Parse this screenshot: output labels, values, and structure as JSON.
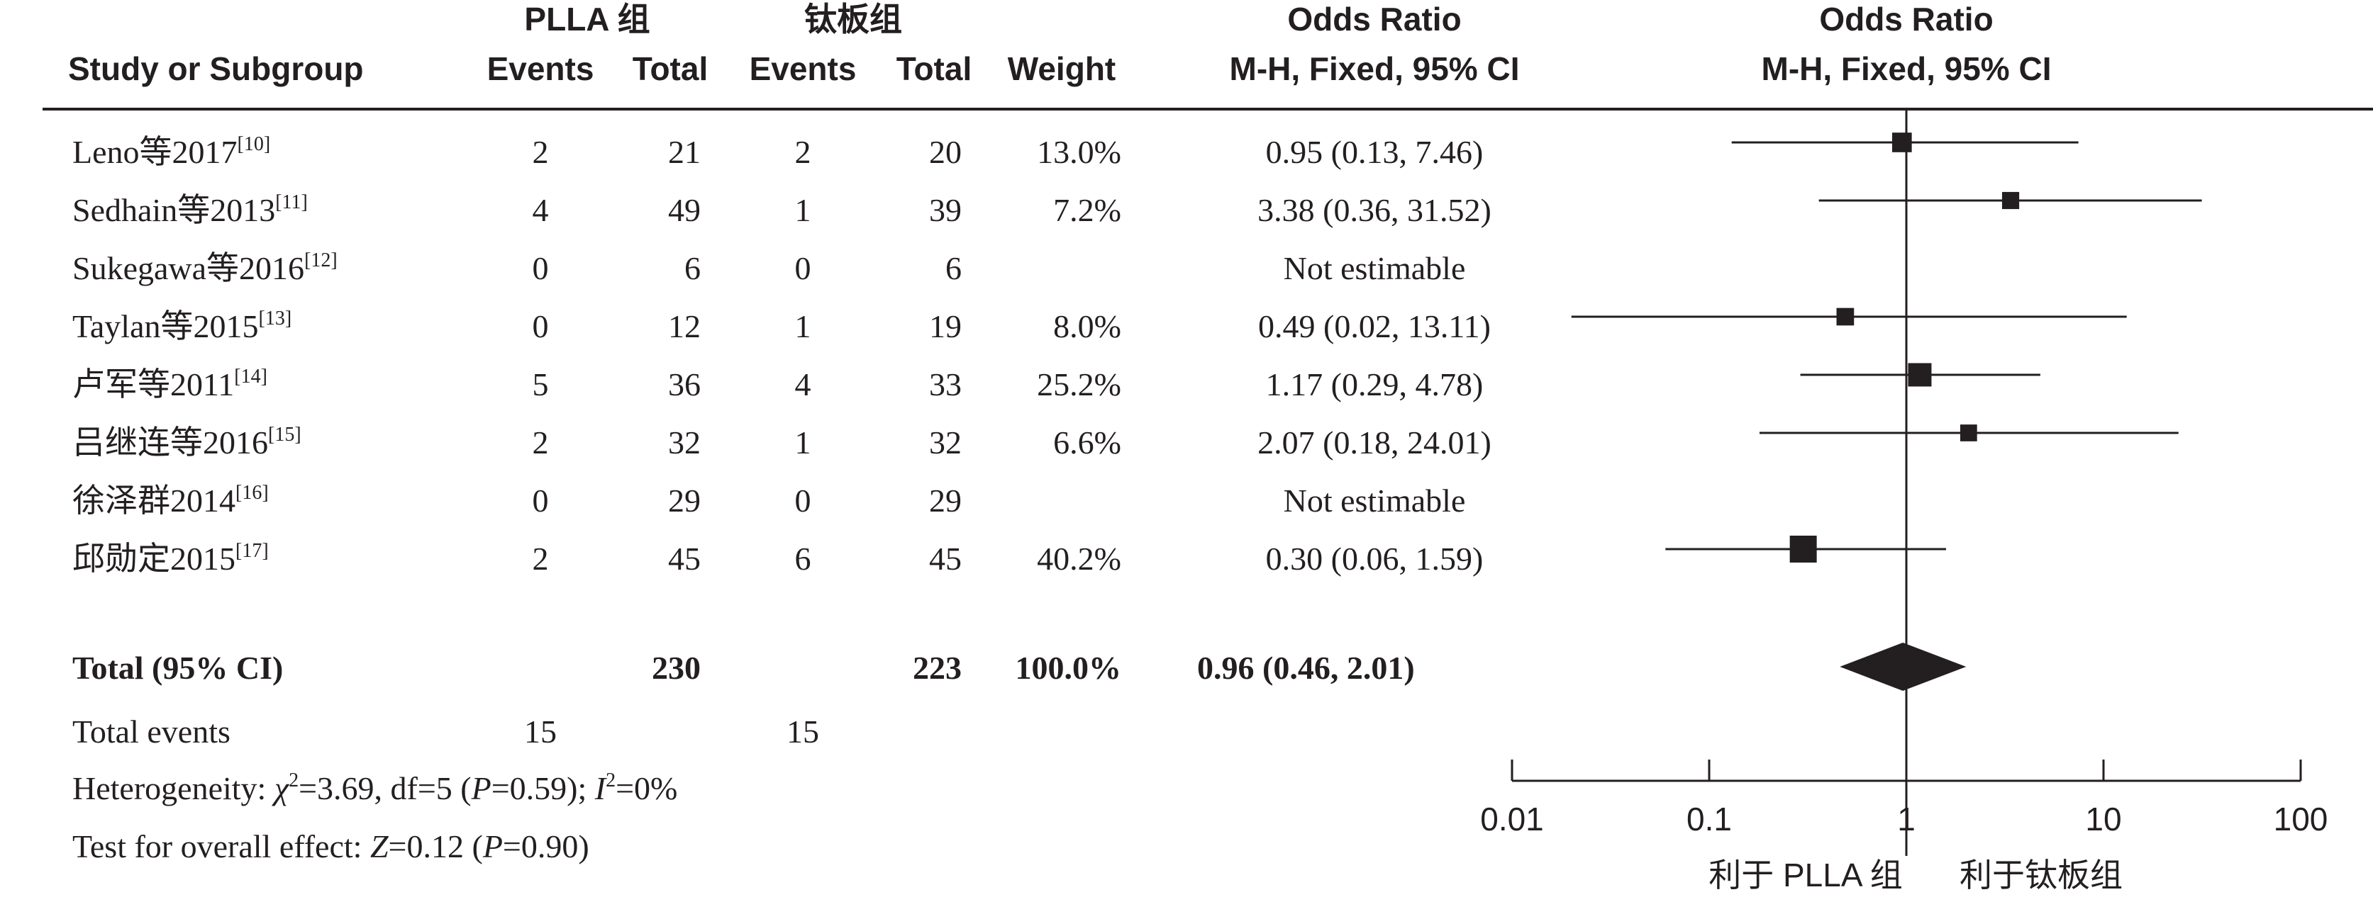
{
  "headers": {
    "group1": "PLLA 组",
    "group2": "钛板组",
    "study": "Study or Subgroup",
    "events1": "Events",
    "total1": "Total",
    "events2": "Events",
    "total2": "Total",
    "weight": "Weight",
    "or_title": "Odds Ratio",
    "or_method": "M-H, Fixed, 95% CI",
    "plot_title": "Odds Ratio",
    "plot_method": "M-H, Fixed, 95% CI"
  },
  "studies": [
    {
      "name": "Leno等2017",
      "ref": "[10]",
      "events1": "2",
      "total1": "21",
      "events2": "2",
      "total2": "20",
      "weight": "13.0%",
      "ci_text": "0.95 (0.13, 7.46)"
    },
    {
      "name": "Sedhain等2013",
      "ref": "[11]",
      "events1": "4",
      "total1": "49",
      "events2": "1",
      "total2": "39",
      "weight": "7.2%",
      "ci_text": "3.38 (0.36, 31.52)"
    },
    {
      "name": "Sukegawa等2016",
      "ref": "[12]",
      "events1": "0",
      "total1": "6",
      "events2": "0",
      "total2": "6",
      "weight": "",
      "ci_text": "Not estimable"
    },
    {
      "name": "Taylan等2015",
      "ref": "[13]",
      "events1": "0",
      "total1": "12",
      "events2": "1",
      "total2": "19",
      "weight": "8.0%",
      "ci_text": "0.49 (0.02, 13.11)"
    },
    {
      "name": "卢军等2011",
      "ref": "[14]",
      "events1": "5",
      "total1": "36",
      "events2": "4",
      "total2": "33",
      "weight": "25.2%",
      "ci_text": "1.17 (0.29, 4.78)"
    },
    {
      "name": "吕继连等2016",
      "ref": "[15]",
      "events1": "2",
      "total1": "32",
      "events2": "1",
      "total2": "32",
      "weight": "6.6%",
      "ci_text": "2.07 (0.18, 24.01)"
    },
    {
      "name": "徐泽群2014",
      "ref": "[16]",
      "events1": "0",
      "total1": "29",
      "events2": "0",
      "total2": "29",
      "weight": "",
      "ci_text": "Not estimable"
    },
    {
      "name": "邱勋定2015",
      "ref": "[17]",
      "events1": "2",
      "total1": "45",
      "events2": "6",
      "total2": "45",
      "weight": "40.2%",
      "ci_text": "0.30 (0.06, 1.59)"
    }
  ],
  "total": {
    "label": "Total (95% CI)",
    "total1": "230",
    "total2": "223",
    "weight": "100.0%",
    "ci_text": "0.96 (0.46, 2.01)"
  },
  "total_events": {
    "label": "Total events",
    "events1": "15",
    "events2": "15"
  },
  "heterogeneity": {
    "label": "Heterogeneity: ",
    "chi_sym": "χ",
    "chi_exp": "2",
    "chi_val": "=3.69, df=5 (",
    "p": "P",
    "p_val": "=0.59); ",
    "i": "I",
    "i_exp": "2",
    "i_val": "=0%"
  },
  "overall": {
    "label": "Test for overall effect: ",
    "z": "Z",
    "z_val": "=0.12 (",
    "p": "P",
    "p_val": "=0.90)"
  },
  "axis": {
    "left_label": "利于 PLLA 组",
    "right_label": "利于钛板组"
  },
  "chart_data": {
    "type": "scatter",
    "x_scale": "log",
    "xlim": [
      0.01,
      100
    ],
    "ticks": [
      0.01,
      0.1,
      1,
      10,
      100
    ],
    "tick_labels": [
      "0.01",
      "0.1",
      "1",
      "10",
      "100"
    ],
    "reference_line": 1,
    "points": [
      {
        "study": "Leno等2017",
        "or": 0.95,
        "lower": 0.13,
        "upper": 7.46,
        "weight": 13.0
      },
      {
        "study": "Sedhain等2013",
        "or": 3.38,
        "lower": 0.36,
        "upper": 31.52,
        "weight": 7.2
      },
      {
        "study": "Taylan等2015",
        "or": 0.49,
        "lower": 0.02,
        "upper": 13.11,
        "weight": 8.0
      },
      {
        "study": "卢军等2011",
        "or": 1.17,
        "lower": 0.29,
        "upper": 4.78,
        "weight": 25.2
      },
      {
        "study": "吕继连等2016",
        "or": 2.07,
        "lower": 0.18,
        "upper": 24.01,
        "weight": 6.6
      },
      {
        "study": "邱勋定2015",
        "or": 0.3,
        "lower": 0.06,
        "upper": 1.59,
        "weight": 40.2
      }
    ],
    "pooled": {
      "or": 0.96,
      "lower": 0.46,
      "upper": 2.01
    }
  }
}
